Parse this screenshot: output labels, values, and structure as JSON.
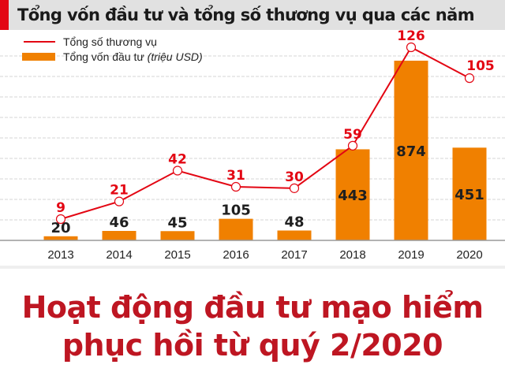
{
  "header": {
    "title": "Tổng vốn đầu tư và tổng số thương vụ qua các năm"
  },
  "legend": {
    "line_label": "Tổng số thương vụ",
    "bar_label_main": "Tổng vốn đầu tư ",
    "bar_label_unit": "(triệu USD)"
  },
  "headline": {
    "line1": "Hoạt động đầu tư mạo hiểm",
    "line2": "phục hồi từ quý 2/2020"
  },
  "colors": {
    "bar": "#f08000",
    "line": "#e30613",
    "title_bg": "#e1e1e1",
    "headline": "#be1622"
  },
  "chart_data": {
    "type": "bar+line",
    "title": "Tổng vốn đầu tư và tổng số thương vụ qua các năm",
    "categories": [
      "2013",
      "2014",
      "2015",
      "2016",
      "2017",
      "2018",
      "2019",
      "2020"
    ],
    "series": [
      {
        "name": "Tổng vốn đầu tư (triệu USD)",
        "type": "bar",
        "values": [
          20,
          46,
          45,
          105,
          48,
          443,
          874,
          451
        ]
      },
      {
        "name": "Tổng số thương vụ",
        "type": "line",
        "values": [
          9,
          21,
          42,
          31,
          30,
          59,
          126,
          105
        ]
      }
    ],
    "xlabel": "",
    "ylabel": "",
    "grid": true,
    "legend_position": "top-left",
    "data_labels": true
  }
}
